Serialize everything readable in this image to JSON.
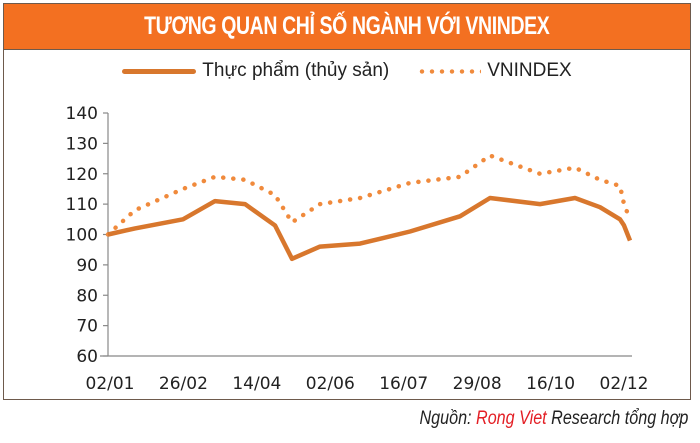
{
  "header": {
    "title": "TƯƠNG QUAN CHỈ SỐ NGÀNH VỚI VNINDEX"
  },
  "legend": {
    "items": [
      {
        "label": "Thực phẩm (thủy sản)",
        "style": "solid-line",
        "color": "#d8772d"
      },
      {
        "label": "VNINDEX",
        "style": "dotted",
        "color": "#f08a3c"
      }
    ]
  },
  "source": {
    "prefix": "Nguồn: ",
    "brand": "Rong Viet",
    "suffix": " Research tổng hợp",
    "brand_color": "#e31e24"
  },
  "colors": {
    "header_bg": "#f37021",
    "series_food": "#d8772d",
    "series_vnindex": "#f08a3c"
  },
  "chart_data": {
    "type": "line",
    "title": "TƯƠNG QUAN CHỈ SỐ NGÀNH VỚI VNINDEX",
    "xlabel": "",
    "ylabel": "",
    "ylim": [
      60,
      140
    ],
    "yticks": [
      60,
      70,
      80,
      90,
      100,
      110,
      120,
      130,
      140
    ],
    "xticks": [
      "02/01",
      "26/02",
      "14/04",
      "02/06",
      "16/07",
      "29/08",
      "16/10",
      "02/12"
    ],
    "grid": false,
    "legend_position": "top",
    "x": [
      "02/01",
      "15/01",
      "26/02",
      "20/03",
      "14/04",
      "10/05",
      "20/05",
      "02/06",
      "20/06",
      "16/07",
      "05/08",
      "29/08",
      "20/09",
      "16/10",
      "05/11",
      "02/12",
      "15/12",
      "25/12"
    ],
    "series": [
      {
        "name": "Thực phẩm (thủy sản)",
        "style": "solid",
        "values": [
          100,
          102,
          105,
          111,
          110,
          103,
          92,
          96,
          97,
          101,
          106,
          112,
          110,
          112,
          109,
          105,
          103,
          98
        ]
      },
      {
        "name": "VNINDEX",
        "style": "dotted",
        "values": [
          100,
          108,
          115,
          119,
          118,
          113,
          104,
          110,
          112,
          117,
          119,
          126,
          120,
          122,
          118,
          116,
          110,
          105
        ]
      }
    ]
  }
}
